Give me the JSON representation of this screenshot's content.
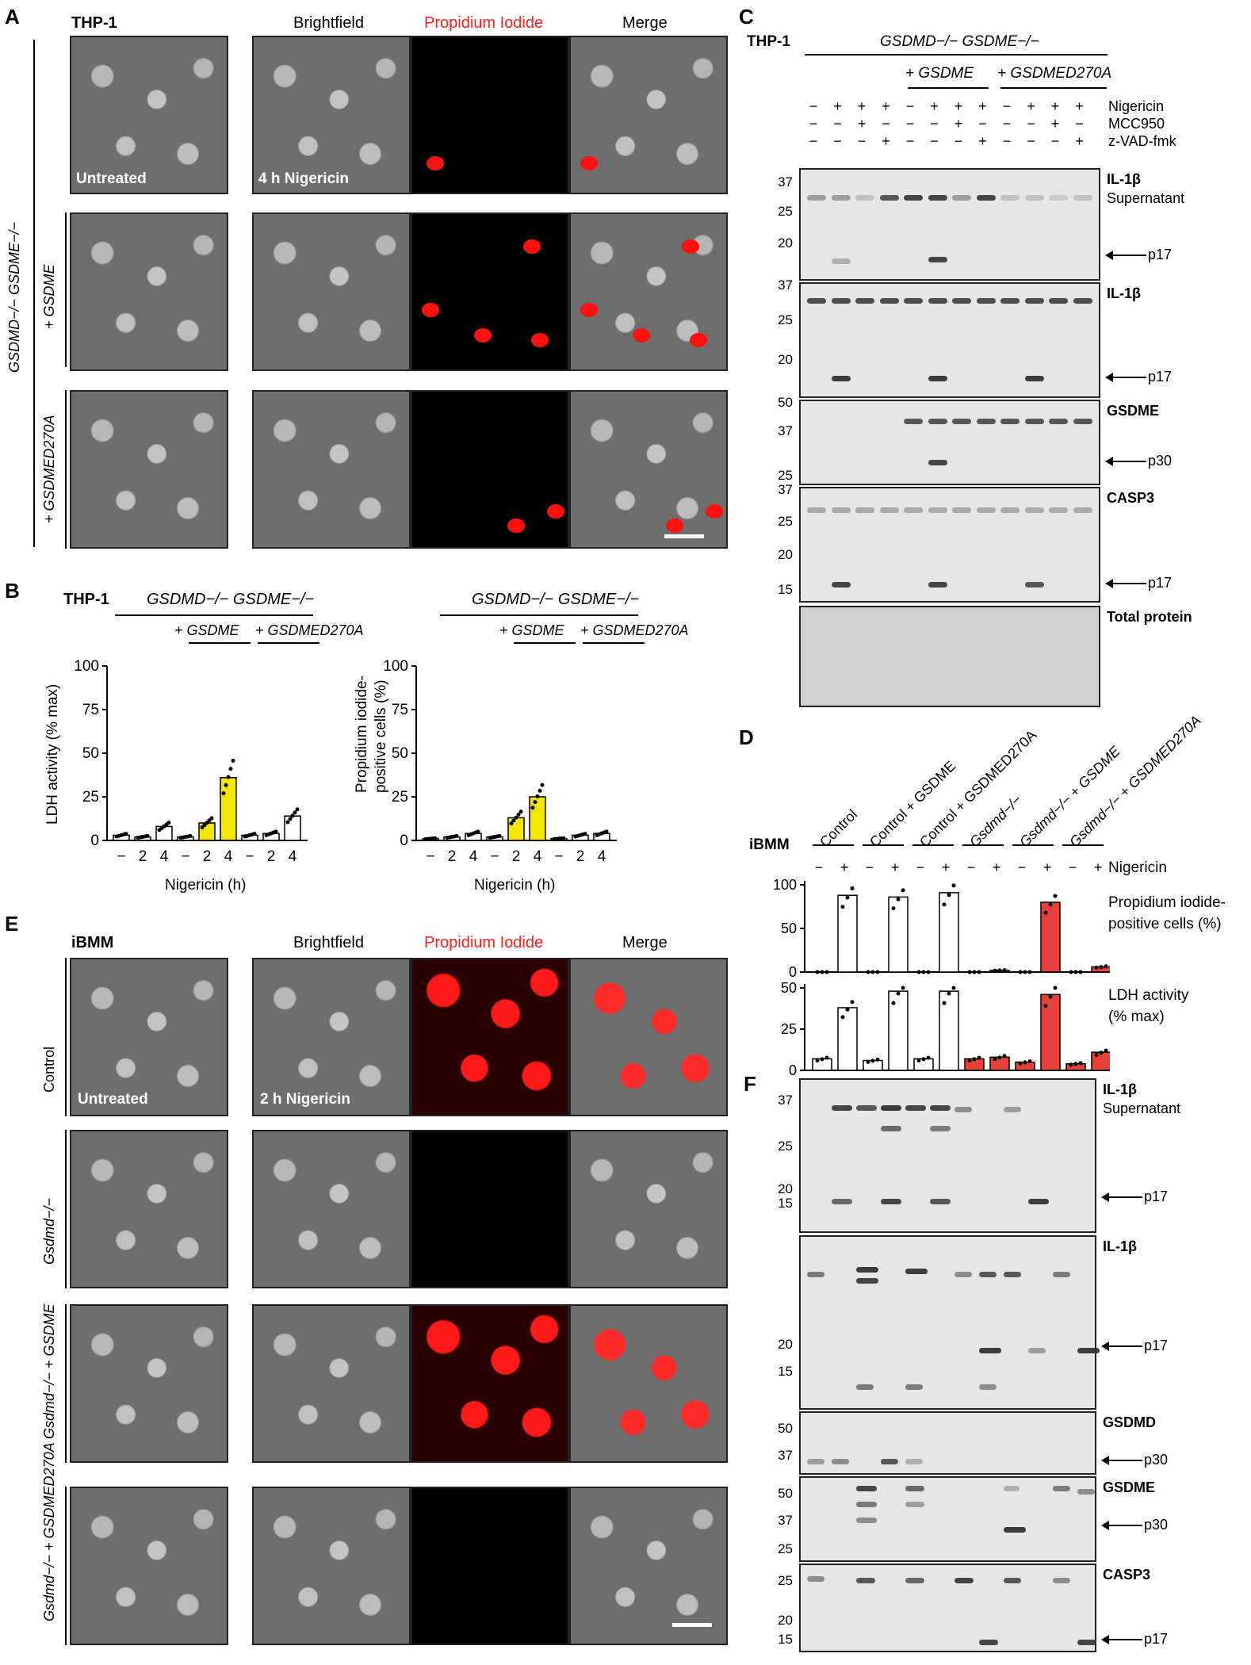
{
  "panelA": {
    "letter": "A",
    "cell_line": "THP-1",
    "col_brightfield": "Brightfield",
    "col_pi": "Propidium Iodide",
    "col_merge": "Merge",
    "row_group": "GSDMD−/− GSDME−/−",
    "row2": "+ GSDME",
    "row3": "+ GSDMED270A",
    "untreated": "Untreated",
    "treated": "4 h Nigericin"
  },
  "panelB": {
    "letter": "B",
    "cell_line": "THP-1",
    "group": "GSDMD−/− GSDME−/−",
    "sub1": "+ GSDME",
    "sub2": "+ GSDMED270A",
    "xlabel": "Nigericin (h)"
  },
  "panelC": {
    "letter": "C",
    "cell_line": "THP-1",
    "group": "GSDMD−/− GSDME−/−",
    "sub1": "+ GSDME",
    "sub2": "+ GSDMED270A",
    "rows": [
      {
        "label": "Nigericin",
        "signs": [
          "−",
          "+",
          "+",
          "+",
          "−",
          "+",
          "+",
          "+",
          "−",
          "+",
          "+",
          "+"
        ]
      },
      {
        "label": "MCC950",
        "signs": [
          "−",
          "−",
          "+",
          "−",
          "−",
          "−",
          "+",
          "−",
          "−",
          "−",
          "+",
          "−"
        ]
      },
      {
        "label": "z-VAD-fmk",
        "signs": [
          "−",
          "−",
          "−",
          "+",
          "−",
          "−",
          "−",
          "+",
          "−",
          "−",
          "−",
          "+"
        ]
      }
    ],
    "blots": [
      {
        "title": "IL-1β",
        "subtitle": "Supernatant",
        "mw": [
          "37",
          "25",
          "20"
        ],
        "arrow": "p17"
      },
      {
        "title": "IL-1β",
        "subtitle": "",
        "mw": [
          "37",
          "25",
          "20"
        ],
        "arrow": "p17"
      },
      {
        "title": "GSDME",
        "subtitle": "",
        "mw": [
          "50",
          "37",
          "25"
        ],
        "arrow": "p30"
      },
      {
        "title": "CASP3",
        "subtitle": "",
        "mw": [
          "37",
          "25",
          "20",
          "15"
        ],
        "arrow": "p17"
      },
      {
        "title": "Total protein",
        "subtitle": "",
        "mw": [],
        "arrow": ""
      }
    ]
  },
  "panelD": {
    "letter": "D",
    "cell_line": "iBMM",
    "groups": [
      "Control",
      "Control + GSDME",
      "Control + GSDMED270A",
      "Gsdmd−/−",
      "Gsdmd−/− + GSDME",
      "Gsdmd−/− + GSDMED270A"
    ],
    "nigericin_label": "Nigericin",
    "pi_label_1": "Propidium iodide-",
    "pi_label_2": "positive cells (%)",
    "ldh_label_1": "LDH activity",
    "ldh_label_2": "(% max)"
  },
  "panelE": {
    "letter": "E",
    "cell_line": "iBMM",
    "col_brightfield": "Brightfield",
    "col_pi": "Propidium Iodide",
    "col_merge": "Merge",
    "rows": [
      "Control",
      "Gsdmd−/−",
      "Gsdmd−/− + GSDME",
      "Gsdmd−/− + GSDMED270A"
    ],
    "untreated": "Untreated",
    "treated": "2 h Nigericin"
  },
  "panelF": {
    "letter": "F",
    "blots": [
      {
        "title": "IL-1β",
        "subtitle": "Supernatant",
        "mw": [
          "37",
          "25",
          "20",
          "15"
        ],
        "arrow": "p17"
      },
      {
        "title": "IL-1β",
        "subtitle": "",
        "mw": [
          "20",
          "15"
        ],
        "arrow": "p17"
      },
      {
        "title": "GSDMD",
        "subtitle": "",
        "mw": [
          "50",
          "37"
        ],
        "arrow": "p30"
      },
      {
        "title": "GSDME",
        "subtitle": "",
        "mw": [
          "50",
          "37",
          "25"
        ],
        "arrow": "p30"
      },
      {
        "title": "CASP3",
        "subtitle": "",
        "mw": [
          "25",
          "20",
          "15"
        ],
        "arrow": "p17"
      }
    ]
  },
  "colors": {
    "yellow": "#f2e600",
    "red": "#e8403a",
    "pi_red": "#ff2020"
  },
  "chart_data": [
    {
      "type": "bar",
      "panel": "B-left",
      "ylabel": "LDH activity (% max)",
      "xlabel": "Nigericin (h)",
      "categories": [
        "−",
        "2",
        "4",
        "−",
        "2",
        "4",
        "−",
        "2",
        "4"
      ],
      "values": [
        3,
        2,
        8,
        2,
        10,
        36,
        3,
        4,
        14
      ],
      "ylim": [
        0,
        100
      ],
      "yticks": [
        0,
        25,
        50,
        75,
        100
      ]
    },
    {
      "type": "bar",
      "panel": "B-right",
      "ylabel": "Propidium iodide-positive cells (%)",
      "xlabel": "Nigericin (h)",
      "categories": [
        "−",
        "2",
        "4",
        "−",
        "2",
        "4",
        "−",
        "2",
        "4"
      ],
      "values": [
        1,
        2,
        4,
        2,
        13,
        25,
        1,
        3,
        4
      ],
      "ylim": [
        0,
        100
      ],
      "yticks": [
        0,
        25,
        50,
        75,
        100
      ]
    },
    {
      "type": "bar",
      "panel": "D-top",
      "ylabel": "Propidium iodide-positive cells (%)",
      "categories": [
        "−",
        "+",
        "−",
        "+",
        "−",
        "+",
        "−",
        "+",
        "−",
        "+",
        "−",
        "+"
      ],
      "values": [
        0,
        88,
        0,
        86,
        0,
        91,
        0,
        2,
        0,
        80,
        0,
        6
      ],
      "ylim": [
        0,
        100
      ],
      "yticks": [
        0,
        50,
        100
      ]
    },
    {
      "type": "bar",
      "panel": "D-bottom",
      "ylabel": "LDH activity (% max)",
      "categories": [
        "−",
        "+",
        "−",
        "+",
        "−",
        "+",
        "−",
        "+",
        "−",
        "+",
        "−",
        "+"
      ],
      "values": [
        7,
        38,
        6,
        48,
        7,
        48,
        7,
        8,
        5,
        46,
        4,
        11
      ],
      "ylim": [
        0,
        50
      ],
      "yticks": [
        0,
        25,
        50
      ]
    }
  ]
}
